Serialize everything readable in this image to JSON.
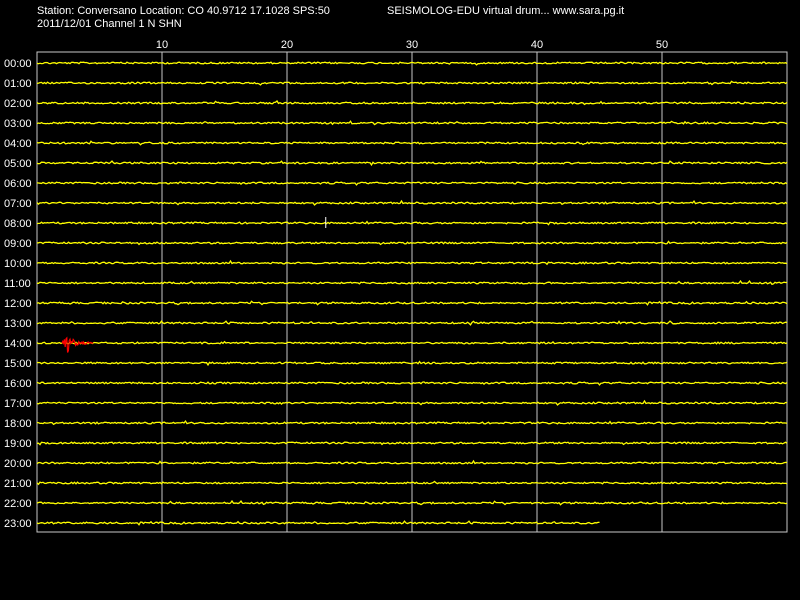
{
  "header": {
    "station_line": "Station: Conversano Location: CO 40.9712 17.1028 SPS:50",
    "date_channel_line": "2011/12/01  Channel 1 N SHN",
    "program_line": "SEISMOLOG-EDU virtual drum... www.sara.pg.it"
  },
  "drum": {
    "minute_ticks": [
      "10",
      "20",
      "30",
      "40",
      "50"
    ],
    "minute_tick_values": [
      10,
      20,
      30,
      40,
      50
    ],
    "minutes_per_row": 60,
    "rows": [
      {
        "hour": "00:00"
      },
      {
        "hour": "01:00"
      },
      {
        "hour": "02:00"
      },
      {
        "hour": "03:00"
      },
      {
        "hour": "04:00"
      },
      {
        "hour": "05:00"
      },
      {
        "hour": "06:00"
      },
      {
        "hour": "07:00"
      },
      {
        "hour": "08:00"
      },
      {
        "hour": "09:00"
      },
      {
        "hour": "10:00"
      },
      {
        "hour": "11:00"
      },
      {
        "hour": "12:00"
      },
      {
        "hour": "13:00"
      },
      {
        "hour": "14:00"
      },
      {
        "hour": "15:00"
      },
      {
        "hour": "16:00"
      },
      {
        "hour": "17:00"
      },
      {
        "hour": "18:00"
      },
      {
        "hour": "19:00"
      },
      {
        "hour": "20:00"
      },
      {
        "hour": "21:00"
      },
      {
        "hour": "22:00"
      },
      {
        "hour": "23:00"
      }
    ],
    "last_row_end_minute": 45,
    "event": {
      "hour": "14:00",
      "start_minute": 2,
      "end_minute": 4.5
    },
    "trace_color": "#ffff00",
    "event_color": "#ff0000",
    "grid_color": "#c8c8c8"
  }
}
